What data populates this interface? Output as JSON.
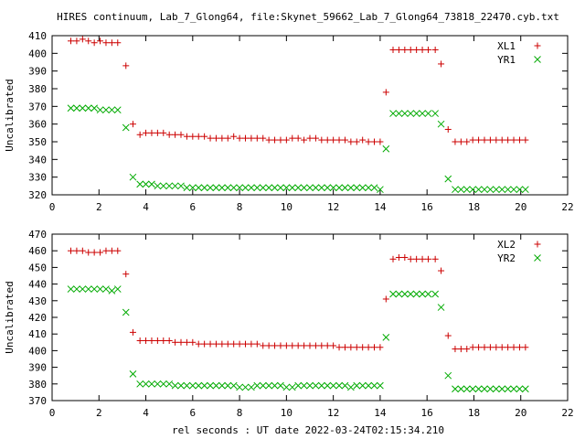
{
  "title": "HIRES continuum, Lab_7_Glong64, file:Skynet_59662_Lab_7_Glong64_73818_22470.cyb.txt",
  "xlabel": "rel seconds : UT date 2022-03-24T02:15:34.210",
  "colors": {
    "red": "#cc0000",
    "green": "#00aa00"
  },
  "chart_data": [
    {
      "type": "scatter",
      "ylabel": "Uncalibrated",
      "xlim": [
        0,
        22
      ],
      "ylim": [
        320,
        410
      ],
      "xticks": [
        0,
        2,
        4,
        6,
        8,
        10,
        12,
        14,
        16,
        18,
        20,
        22
      ],
      "yticks": [
        320,
        330,
        340,
        350,
        360,
        370,
        380,
        390,
        400,
        410
      ],
      "legend_position": "top-right",
      "series": [
        {
          "name": "XL1",
          "marker": "plus",
          "color": "#cc0000",
          "x": [
            0.8,
            1.05,
            1.3,
            1.55,
            1.8,
            2.05,
            2.3,
            2.55,
            2.8,
            3.15,
            3.45,
            3.75,
            4.0,
            4.25,
            4.5,
            4.75,
            5.0,
            5.25,
            5.5,
            5.75,
            6.0,
            6.25,
            6.5,
            6.75,
            7.0,
            7.25,
            7.5,
            7.75,
            8.0,
            8.25,
            8.5,
            8.75,
            9.0,
            9.25,
            9.5,
            9.75,
            10.0,
            10.25,
            10.5,
            10.75,
            11.0,
            11.25,
            11.5,
            11.75,
            12.0,
            12.25,
            12.5,
            12.75,
            13.0,
            13.25,
            13.5,
            13.75,
            14.0,
            14.25,
            14.55,
            14.8,
            15.05,
            15.3,
            15.55,
            15.8,
            16.05,
            16.35,
            16.6,
            16.9,
            17.2,
            17.45,
            17.7,
            17.95,
            18.2,
            18.45,
            18.7,
            18.95,
            19.2,
            19.45,
            19.7,
            19.95,
            20.2
          ],
          "y": [
            407,
            407,
            408,
            407,
            406,
            407,
            406,
            406,
            406,
            393,
            360,
            354,
            355,
            355,
            355,
            355,
            354,
            354,
            354,
            353,
            353,
            353,
            353,
            352,
            352,
            352,
            352,
            353,
            352,
            352,
            352,
            352,
            352,
            351,
            351,
            351,
            351,
            352,
            352,
            351,
            352,
            352,
            351,
            351,
            351,
            351,
            351,
            350,
            350,
            351,
            350,
            350,
            350,
            378,
            402,
            402,
            402,
            402,
            402,
            402,
            402,
            402,
            394,
            357,
            350,
            350,
            350,
            351,
            351,
            351,
            351,
            351,
            351,
            351,
            351,
            351,
            351
          ]
        },
        {
          "name": "YR1",
          "marker": "cross",
          "color": "#00aa00",
          "x": [
            0.8,
            1.05,
            1.3,
            1.55,
            1.8,
            2.05,
            2.3,
            2.55,
            2.8,
            3.15,
            3.45,
            3.75,
            4.0,
            4.25,
            4.5,
            4.75,
            5.0,
            5.25,
            5.5,
            5.75,
            6.0,
            6.25,
            6.5,
            6.75,
            7.0,
            7.25,
            7.5,
            7.75,
            8.0,
            8.25,
            8.5,
            8.75,
            9.0,
            9.25,
            9.5,
            9.75,
            10.0,
            10.25,
            10.5,
            10.75,
            11.0,
            11.25,
            11.5,
            11.75,
            12.0,
            12.25,
            12.5,
            12.75,
            13.0,
            13.25,
            13.5,
            13.75,
            14.0,
            14.25,
            14.55,
            14.8,
            15.05,
            15.3,
            15.55,
            15.8,
            16.05,
            16.35,
            16.6,
            16.9,
            17.2,
            17.45,
            17.7,
            17.95,
            18.2,
            18.45,
            18.7,
            18.95,
            19.2,
            19.45,
            19.7,
            19.95,
            20.2
          ],
          "y": [
            369,
            369,
            369,
            369,
            369,
            368,
            368,
            368,
            368,
            358,
            330,
            326,
            326,
            326,
            325,
            325,
            325,
            325,
            325,
            324,
            324,
            324,
            324,
            324,
            324,
            324,
            324,
            324,
            324,
            324,
            324,
            324,
            324,
            324,
            324,
            324,
            324,
            324,
            324,
            324,
            324,
            324,
            324,
            324,
            324,
            324,
            324,
            324,
            324,
            324,
            324,
            324,
            323,
            346,
            366,
            366,
            366,
            366,
            366,
            366,
            366,
            366,
            360,
            329,
            323,
            323,
            323,
            323,
            323,
            323,
            323,
            323,
            323,
            323,
            323,
            323,
            323
          ]
        }
      ]
    },
    {
      "type": "scatter",
      "ylabel": "Uncalibrated",
      "xlim": [
        0,
        22
      ],
      "ylim": [
        370,
        470
      ],
      "xticks": [
        0,
        2,
        4,
        6,
        8,
        10,
        12,
        14,
        16,
        18,
        20,
        22
      ],
      "yticks": [
        370,
        380,
        390,
        400,
        410,
        420,
        430,
        440,
        450,
        460,
        470
      ],
      "legend_position": "top-right",
      "series": [
        {
          "name": "XL2",
          "marker": "plus",
          "color": "#cc0000",
          "x": [
            0.8,
            1.05,
            1.3,
            1.55,
            1.8,
            2.05,
            2.3,
            2.55,
            2.8,
            3.15,
            3.45,
            3.75,
            4.0,
            4.25,
            4.5,
            4.75,
            5.0,
            5.25,
            5.5,
            5.75,
            6.0,
            6.25,
            6.5,
            6.75,
            7.0,
            7.25,
            7.5,
            7.75,
            8.0,
            8.25,
            8.5,
            8.75,
            9.0,
            9.25,
            9.5,
            9.75,
            10.0,
            10.25,
            10.5,
            10.75,
            11.0,
            11.25,
            11.5,
            11.75,
            12.0,
            12.25,
            12.5,
            12.75,
            13.0,
            13.25,
            13.5,
            13.75,
            14.0,
            14.25,
            14.55,
            14.8,
            15.05,
            15.3,
            15.55,
            15.8,
            16.05,
            16.35,
            16.6,
            16.9,
            17.2,
            17.45,
            17.7,
            17.95,
            18.2,
            18.45,
            18.7,
            18.95,
            19.2,
            19.45,
            19.7,
            19.95,
            20.2
          ],
          "y": [
            460,
            460,
            460,
            459,
            459,
            459,
            460,
            460,
            460,
            446,
            411,
            406,
            406,
            406,
            406,
            406,
            406,
            405,
            405,
            405,
            405,
            404,
            404,
            404,
            404,
            404,
            404,
            404,
            404,
            404,
            404,
            404,
            403,
            403,
            403,
            403,
            403,
            403,
            403,
            403,
            403,
            403,
            403,
            403,
            403,
            402,
            402,
            402,
            402,
            402,
            402,
            402,
            402,
            431,
            455,
            456,
            456,
            455,
            455,
            455,
            455,
            455,
            448,
            409,
            401,
            401,
            401,
            402,
            402,
            402,
            402,
            402,
            402,
            402,
            402,
            402,
            402
          ]
        },
        {
          "name": "YR2",
          "marker": "cross",
          "color": "#00aa00",
          "x": [
            0.8,
            1.05,
            1.3,
            1.55,
            1.8,
            2.05,
            2.3,
            2.55,
            2.8,
            3.15,
            3.45,
            3.75,
            4.0,
            4.25,
            4.5,
            4.75,
            5.0,
            5.25,
            5.5,
            5.75,
            6.0,
            6.25,
            6.5,
            6.75,
            7.0,
            7.25,
            7.5,
            7.75,
            8.0,
            8.25,
            8.5,
            8.75,
            9.0,
            9.25,
            9.5,
            9.75,
            10.0,
            10.25,
            10.5,
            10.75,
            11.0,
            11.25,
            11.5,
            11.75,
            12.0,
            12.25,
            12.5,
            12.75,
            13.0,
            13.25,
            13.5,
            13.75,
            14.0,
            14.25,
            14.55,
            14.8,
            15.05,
            15.3,
            15.55,
            15.8,
            16.05,
            16.35,
            16.6,
            16.9,
            17.2,
            17.45,
            17.7,
            17.95,
            18.2,
            18.45,
            18.7,
            18.95,
            19.2,
            19.45,
            19.7,
            19.95,
            20.2
          ],
          "y": [
            437,
            437,
            437,
            437,
            437,
            437,
            437,
            436,
            437,
            423,
            386,
            380,
            380,
            380,
            380,
            380,
            380,
            379,
            379,
            379,
            379,
            379,
            379,
            379,
            379,
            379,
            379,
            379,
            378,
            378,
            378,
            379,
            379,
            379,
            379,
            379,
            378,
            378,
            379,
            379,
            379,
            379,
            379,
            379,
            379,
            379,
            379,
            378,
            379,
            379,
            379,
            379,
            379,
            408,
            434,
            434,
            434,
            434,
            434,
            434,
            434,
            434,
            426,
            385,
            377,
            377,
            377,
            377,
            377,
            377,
            377,
            377,
            377,
            377,
            377,
            377,
            377
          ]
        }
      ]
    }
  ]
}
